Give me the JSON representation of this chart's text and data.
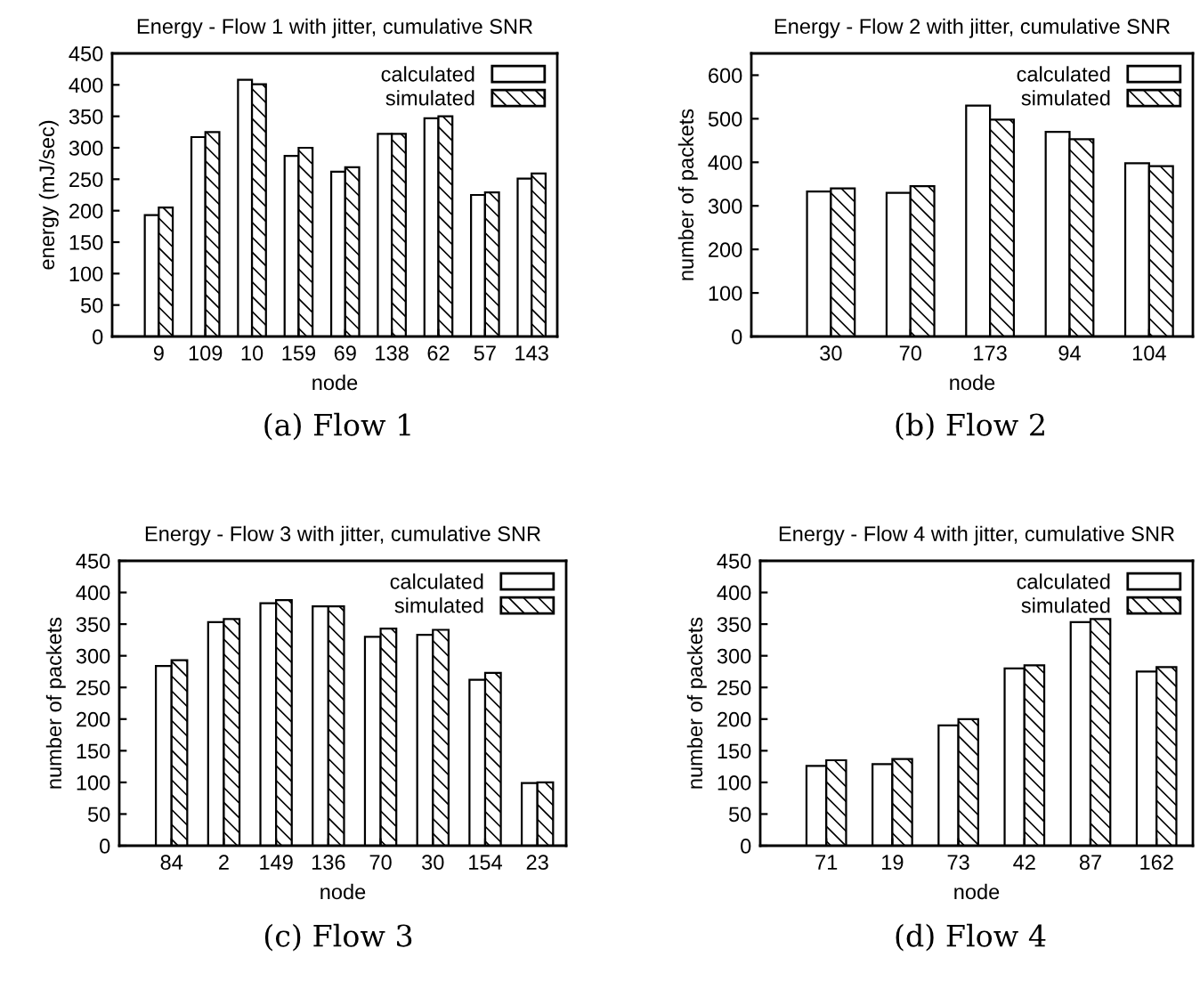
{
  "chart_data": [
    {
      "type": "bar",
      "title": "Energy - Flow 1 with jitter, cumulative SNR",
      "xlabel": "node",
      "ylabel": "energy (mJ/sec)",
      "categories": [
        "9",
        "109",
        "10",
        "159",
        "69",
        "138",
        "62",
        "57",
        "143"
      ],
      "series": [
        {
          "name": "calculated",
          "color": "#ffffff",
          "values": [
            193,
            317,
            408,
            287,
            262,
            322,
            347,
            225,
            251
          ]
        },
        {
          "name": "simulated",
          "color": "#000000",
          "values": [
            205,
            325,
            401,
            300,
            269,
            322,
            350,
            229,
            259
          ]
        }
      ],
      "ylim": [
        0,
        450
      ],
      "yticks": [
        0,
        50,
        100,
        150,
        200,
        250,
        300,
        350,
        400,
        450
      ],
      "legend": "top right",
      "annotations": [
        "(a) Flow 1"
      ]
    },
    {
      "type": "bar",
      "title": "Energy - Flow 2 with jitter, cumulative SNR",
      "xlabel": "node",
      "ylabel": "number of packets",
      "categories": [
        "30",
        "70",
        "173",
        "94",
        "104"
      ],
      "series": [
        {
          "name": "calculated",
          "color": "#ffffff",
          "values": [
            333,
            330,
            530,
            470,
            398
          ]
        },
        {
          "name": "simulated",
          "color": "#000000",
          "values": [
            340,
            345,
            498,
            453,
            391
          ]
        }
      ],
      "ylim": [
        0,
        650
      ],
      "yticks": [
        0,
        100,
        200,
        300,
        400,
        500,
        600
      ],
      "legend": "top right",
      "annotations": [
        "(b) Flow 2"
      ]
    },
    {
      "type": "bar",
      "title": "Energy - Flow 3 with jitter, cumulative SNR",
      "xlabel": "node",
      "ylabel": "number of packets",
      "categories": [
        "84",
        "2",
        "149",
        "136",
        "70",
        "30",
        "154",
        "23"
      ],
      "series": [
        {
          "name": "calculated",
          "color": "#ffffff",
          "values": [
            284,
            353,
            383,
            378,
            330,
            333,
            262,
            99
          ]
        },
        {
          "name": "simulated",
          "color": "#000000",
          "values": [
            293,
            358,
            388,
            378,
            343,
            341,
            273,
            100
          ]
        }
      ],
      "ylim": [
        0,
        450
      ],
      "yticks": [
        0,
        50,
        100,
        150,
        200,
        250,
        300,
        350,
        400,
        450
      ],
      "legend": "top right",
      "annotations": [
        "(c) Flow 3"
      ]
    },
    {
      "type": "bar",
      "title": "Energy - Flow 4 with jitter, cumulative SNR",
      "xlabel": "node",
      "ylabel": "number of packets",
      "categories": [
        "71",
        "19",
        "73",
        "42",
        "87",
        "162"
      ],
      "series": [
        {
          "name": "calculated",
          "color": "#ffffff",
          "values": [
            126,
            129,
            190,
            280,
            353,
            275
          ]
        },
        {
          "name": "simulated",
          "color": "#000000",
          "values": [
            135,
            137,
            200,
            285,
            358,
            282
          ]
        }
      ],
      "ylim": [
        0,
        450
      ],
      "yticks": [
        0,
        50,
        100,
        150,
        200,
        250,
        300,
        350,
        400,
        450
      ],
      "legend": "top right",
      "annotations": [
        "(d) Flow 4"
      ]
    }
  ]
}
